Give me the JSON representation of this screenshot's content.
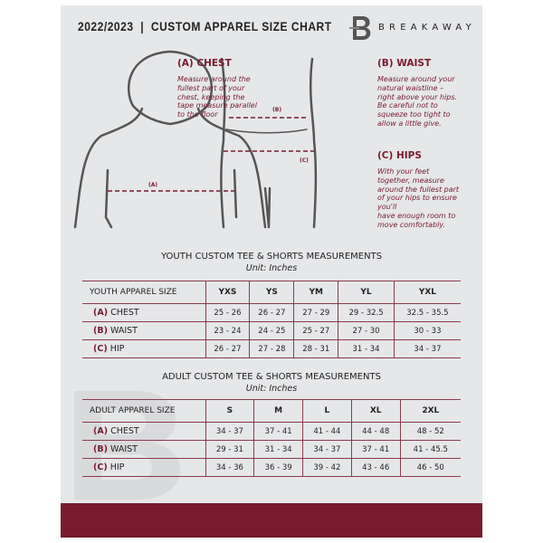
{
  "header": {
    "title": "2022/2023  |  CUSTOM APPAREL SIZE CHART",
    "brand": "BREAKAWAY",
    "logo_letter": "B"
  },
  "guide": {
    "chest": {
      "heading": "(A) CHEST",
      "marker": "(A)",
      "text": [
        "Measure around the",
        "fullest part of your",
        "chest, keeping the",
        "tape measure parallel",
        "to the floor"
      ]
    },
    "waist": {
      "heading": "(B) WAIST",
      "marker": "(B)",
      "text": [
        "Measure around your",
        "natural waistline –",
        "right above your hips.",
        "Be careful not to",
        "squeeze too tight to",
        "allow a little give."
      ]
    },
    "hips": {
      "heading": "(C) HIPS",
      "marker": "(C)",
      "text": [
        "With your feet",
        "together, measure",
        "around the fullest part",
        "of your hips to ensure",
        "you'll",
        "have enough room to",
        "move comfortably."
      ]
    }
  },
  "youth": {
    "title": "YOUTH CUSTOM TEE & SHORTS MEASUREMENTS",
    "unit": "Unit: Inches",
    "header": "YOUTH APPAREL SIZE",
    "sizes": [
      "YXS",
      "YS",
      "YM",
      "YL",
      "YXL"
    ],
    "rows": [
      {
        "letter": "(A)",
        "name": "CHEST",
        "values": [
          "25 - 26",
          "26 - 27",
          "27 - 29",
          "29 - 32.5",
          "32.5 - 35.5"
        ]
      },
      {
        "letter": "(B)",
        "name": "WAIST",
        "values": [
          "23 - 24",
          "24 - 25",
          "25 - 27",
          "27 - 30",
          "30 - 33"
        ]
      },
      {
        "letter": "(C)",
        "name": "HIP",
        "values": [
          "26 - 27",
          "27 - 28",
          "28 - 31",
          "31 - 34",
          "34 - 37"
        ]
      }
    ]
  },
  "adult": {
    "title": "ADULT CUSTOM TEE & SHORTS MEASUREMENTS",
    "unit": "Unit: Inches",
    "header": "ADULT APPAREL SIZE",
    "sizes": [
      "S",
      "M",
      "L",
      "XL",
      "2XL"
    ],
    "rows": [
      {
        "letter": "(A)",
        "name": "CHEST",
        "values": [
          "34 - 37",
          "37 - 41",
          "41 - 44",
          "44 - 48",
          "48 - 52"
        ]
      },
      {
        "letter": "(B)",
        "name": "WAIST",
        "values": [
          "29 - 31",
          "31 - 34",
          "34 - 37",
          "37 - 41",
          "41 - 45.5"
        ]
      },
      {
        "letter": "(C)",
        "name": "HIP",
        "values": [
          "34 - 36",
          "36 - 39",
          "39 - 42",
          "43 - 46",
          "46 - 50"
        ]
      }
    ]
  },
  "colors": {
    "accent": "#781c2e",
    "panel": "#e6e7e9"
  }
}
